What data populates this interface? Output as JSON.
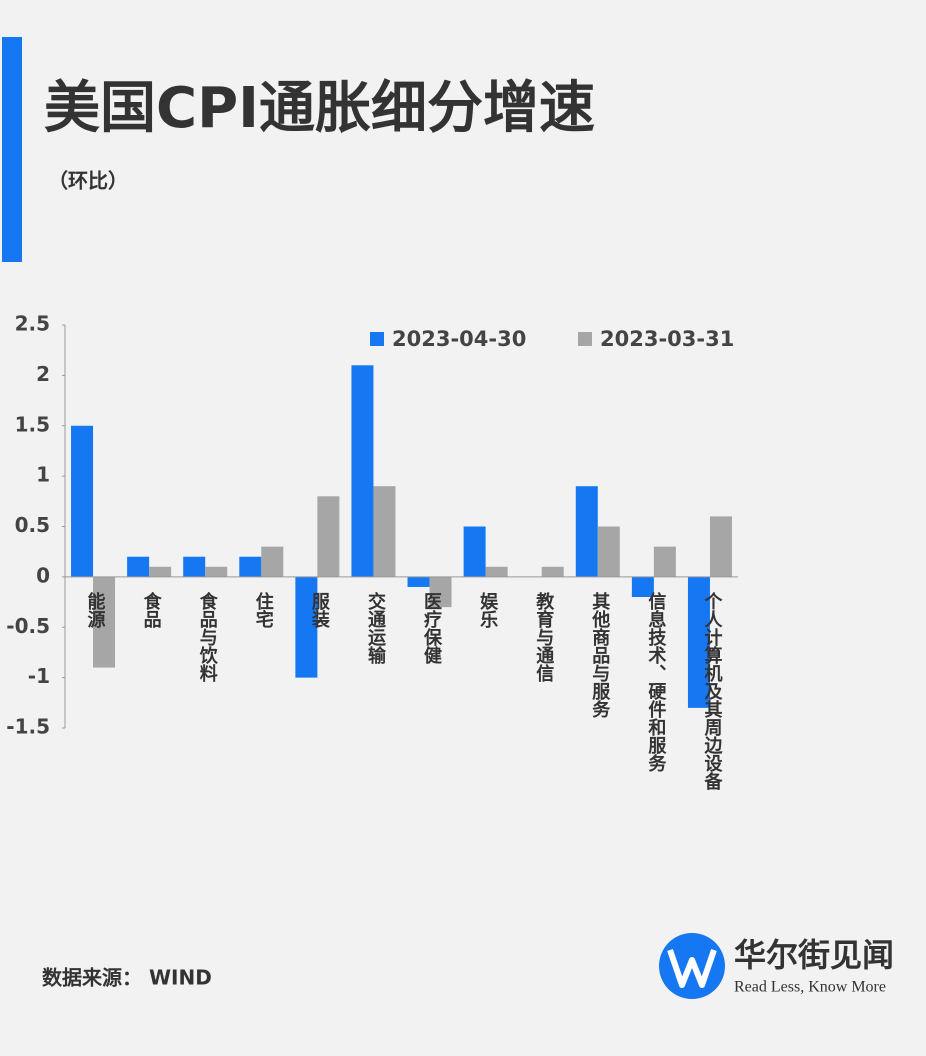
{
  "chart_data": {
    "type": "bar",
    "title": "美国CPI通胀细分增速",
    "subtitle": "（环比）",
    "categories": [
      "能源",
      "食品",
      "食品与饮料",
      "住宅",
      "服装",
      "交通运输",
      "医疗保健",
      "娱乐",
      "教育与通信",
      "其他商品与服务",
      "信息技术、硬件和服务",
      "个人计算机及其周边设备"
    ],
    "series": [
      {
        "name": "2023-04-30",
        "color": "#1677f2",
        "values": [
          1.5,
          0.2,
          0.2,
          0.2,
          -1.0,
          2.1,
          -0.1,
          0.5,
          0,
          0.9,
          -0.2,
          -1.3
        ]
      },
      {
        "name": "2023-03-31",
        "color": "#a6a6a6",
        "values": [
          -0.9,
          0.1,
          0.1,
          0.3,
          0.8,
          0.9,
          -0.3,
          0.1,
          0.1,
          0.5,
          0.3,
          0.6
        ]
      }
    ],
    "ylim": [
      -1.5,
      2.5
    ],
    "yticks": [
      2.5,
      2,
      1.5,
      1,
      0.5,
      0,
      -0.5,
      -1,
      -1.5
    ],
    "source": "数据来源： WIND",
    "brand": "华尔街见闻",
    "slogan": "Read Less, Know More"
  }
}
